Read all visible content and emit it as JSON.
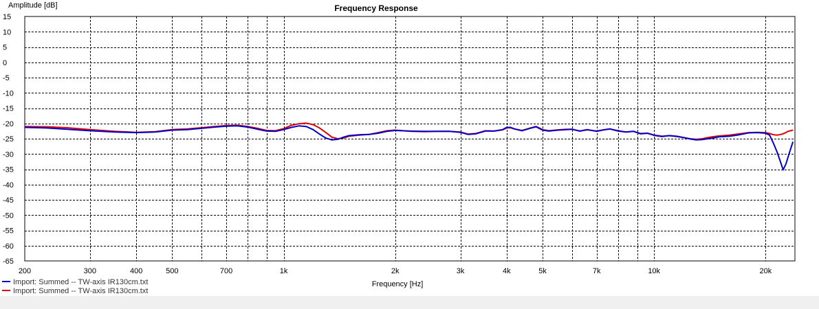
{
  "chart_data": {
    "type": "line",
    "title": "Frequency Response",
    "xlabel": "Frequency [Hz]",
    "ylabel": "Amplitude [dB]",
    "xscale": "log",
    "xlim": [
      200,
      24000
    ],
    "ylim": [
      -65,
      15
    ],
    "xticks": [
      {
        "value": 200,
        "label": "200"
      },
      {
        "value": 300,
        "label": "300"
      },
      {
        "value": 400,
        "label": "400"
      },
      {
        "value": 500,
        "label": "500"
      },
      {
        "value": 700,
        "label": "700"
      },
      {
        "value": 1000,
        "label": "1k"
      },
      {
        "value": 2000,
        "label": "2k"
      },
      {
        "value": 3000,
        "label": "3k"
      },
      {
        "value": 4000,
        "label": "4k"
      },
      {
        "value": 5000,
        "label": "5k"
      },
      {
        "value": 7000,
        "label": "7k"
      },
      {
        "value": 10000,
        "label": "10k"
      },
      {
        "value": 20000,
        "label": "20k"
      }
    ],
    "minor_gridlines": [
      600,
      800,
      900,
      6000,
      8000,
      9000
    ],
    "yticks": [
      15,
      10,
      5,
      0,
      -5,
      -10,
      -15,
      -20,
      -25,
      -30,
      -35,
      -40,
      -45,
      -50,
      -55,
      -60,
      -65
    ],
    "grid": true,
    "legend_position": "bottom-left",
    "series": [
      {
        "name": "Import: Summed -- TW-axis IR130cm.txt",
        "color": "#0000cc",
        "points": [
          [
            200,
            -21.3
          ],
          [
            230,
            -21.5
          ],
          [
            260,
            -21.9
          ],
          [
            300,
            -22.4
          ],
          [
            350,
            -22.8
          ],
          [
            400,
            -23.0
          ],
          [
            450,
            -22.8
          ],
          [
            500,
            -22.2
          ],
          [
            550,
            -22.0
          ],
          [
            600,
            -21.6
          ],
          [
            650,
            -21.2
          ],
          [
            700,
            -20.9
          ],
          [
            750,
            -20.8
          ],
          [
            800,
            -21.2
          ],
          [
            850,
            -21.9
          ],
          [
            900,
            -22.5
          ],
          [
            950,
            -22.6
          ],
          [
            1000,
            -22.0
          ],
          [
            1050,
            -21.3
          ],
          [
            1100,
            -20.8
          ],
          [
            1150,
            -21.0
          ],
          [
            1200,
            -22.0
          ],
          [
            1250,
            -23.5
          ],
          [
            1300,
            -24.8
          ],
          [
            1350,
            -25.4
          ],
          [
            1400,
            -25.2
          ],
          [
            1450,
            -24.5
          ],
          [
            1500,
            -24.0
          ],
          [
            1600,
            -23.7
          ],
          [
            1700,
            -23.6
          ],
          [
            1800,
            -23.2
          ],
          [
            1900,
            -22.6
          ],
          [
            2000,
            -22.3
          ],
          [
            2200,
            -22.5
          ],
          [
            2400,
            -22.6
          ],
          [
            2600,
            -22.6
          ],
          [
            2800,
            -22.6
          ],
          [
            3000,
            -22.9
          ],
          [
            3150,
            -23.6
          ],
          [
            3300,
            -23.4
          ],
          [
            3500,
            -22.5
          ],
          [
            3700,
            -22.5
          ],
          [
            3900,
            -22.0
          ],
          [
            4000,
            -21.3
          ],
          [
            4100,
            -21.3
          ],
          [
            4200,
            -21.8
          ],
          [
            4400,
            -22.4
          ],
          [
            4600,
            -21.7
          ],
          [
            4800,
            -21.1
          ],
          [
            5000,
            -22.2
          ],
          [
            5200,
            -22.5
          ],
          [
            5500,
            -22.2
          ],
          [
            5800,
            -22.0
          ],
          [
            6000,
            -21.9
          ],
          [
            6300,
            -22.5
          ],
          [
            6600,
            -22.0
          ],
          [
            7000,
            -22.6
          ],
          [
            7300,
            -22.1
          ],
          [
            7600,
            -21.8
          ],
          [
            8000,
            -22.5
          ],
          [
            8400,
            -22.8
          ],
          [
            8800,
            -22.6
          ],
          [
            9200,
            -23.4
          ],
          [
            9600,
            -23.2
          ],
          [
            10000,
            -23.9
          ],
          [
            10500,
            -24.3
          ],
          [
            11000,
            -24.0
          ],
          [
            11500,
            -24.2
          ],
          [
            12000,
            -24.6
          ],
          [
            12500,
            -25.1
          ],
          [
            13000,
            -25.4
          ],
          [
            13500,
            -25.3
          ],
          [
            14000,
            -25.0
          ],
          [
            14500,
            -24.7
          ],
          [
            15000,
            -24.4
          ],
          [
            16000,
            -24.2
          ],
          [
            17000,
            -23.7
          ],
          [
            18000,
            -23.1
          ],
          [
            19000,
            -23.0
          ],
          [
            20000,
            -23.2
          ],
          [
            20500,
            -23.8
          ],
          [
            21000,
            -26.5
          ],
          [
            21500,
            -29.5
          ],
          [
            22000,
            -33.0
          ],
          [
            22300,
            -35.2
          ],
          [
            22700,
            -33.2
          ],
          [
            23200,
            -29.5
          ],
          [
            23700,
            -26.0
          ]
        ]
      },
      {
        "name": "Import: Summed -- TW-axis IR130cm.txt",
        "color": "#dd0000",
        "points": [
          [
            200,
            -21.0
          ],
          [
            230,
            -21.1
          ],
          [
            260,
            -21.4
          ],
          [
            300,
            -22.0
          ],
          [
            350,
            -22.6
          ],
          [
            400,
            -22.9
          ],
          [
            450,
            -22.7
          ],
          [
            500,
            -22.0
          ],
          [
            550,
            -21.8
          ],
          [
            600,
            -21.4
          ],
          [
            650,
            -21.0
          ],
          [
            700,
            -20.7
          ],
          [
            750,
            -20.6
          ],
          [
            800,
            -21.0
          ],
          [
            850,
            -21.6
          ],
          [
            900,
            -22.3
          ],
          [
            950,
            -22.4
          ],
          [
            1000,
            -21.7
          ],
          [
            1050,
            -20.6
          ],
          [
            1100,
            -20.1
          ],
          [
            1150,
            -19.9
          ],
          [
            1200,
            -20.4
          ],
          [
            1250,
            -21.5
          ],
          [
            1300,
            -23.0
          ],
          [
            1350,
            -24.5
          ],
          [
            1400,
            -25.0
          ],
          [
            1450,
            -24.8
          ],
          [
            1500,
            -24.2
          ],
          [
            1600,
            -23.8
          ],
          [
            1700,
            -23.6
          ],
          [
            1800,
            -23.0
          ],
          [
            1900,
            -22.4
          ],
          [
            2000,
            -22.2
          ],
          [
            2200,
            -22.6
          ],
          [
            2400,
            -22.7
          ],
          [
            2600,
            -22.6
          ],
          [
            2800,
            -22.6
          ],
          [
            3000,
            -22.8
          ],
          [
            3150,
            -23.5
          ],
          [
            3300,
            -23.3
          ],
          [
            3500,
            -22.4
          ],
          [
            3700,
            -22.5
          ],
          [
            3900,
            -22.1
          ],
          [
            4000,
            -21.5
          ],
          [
            4100,
            -21.4
          ],
          [
            4200,
            -21.8
          ],
          [
            4400,
            -22.3
          ],
          [
            4600,
            -21.6
          ],
          [
            4800,
            -21.0
          ],
          [
            5000,
            -22.0
          ],
          [
            5200,
            -22.4
          ],
          [
            5500,
            -22.1
          ],
          [
            5800,
            -21.9
          ],
          [
            6000,
            -21.9
          ],
          [
            6300,
            -22.5
          ],
          [
            6600,
            -22.1
          ],
          [
            7000,
            -22.5
          ],
          [
            7300,
            -22.1
          ],
          [
            7600,
            -21.8
          ],
          [
            8000,
            -22.4
          ],
          [
            8400,
            -22.8
          ],
          [
            8800,
            -22.6
          ],
          [
            9200,
            -23.3
          ],
          [
            9600,
            -23.2
          ],
          [
            10000,
            -23.8
          ],
          [
            10500,
            -24.2
          ],
          [
            11000,
            -24.0
          ],
          [
            11500,
            -24.3
          ],
          [
            12000,
            -24.6
          ],
          [
            12500,
            -25.0
          ],
          [
            13000,
            -25.2
          ],
          [
            13500,
            -25.0
          ],
          [
            14000,
            -24.6
          ],
          [
            14500,
            -24.3
          ],
          [
            15000,
            -24.1
          ],
          [
            16000,
            -23.8
          ],
          [
            17000,
            -23.4
          ],
          [
            18000,
            -23.0
          ],
          [
            19000,
            -22.9
          ],
          [
            20000,
            -23.0
          ],
          [
            20500,
            -23.3
          ],
          [
            21000,
            -23.7
          ],
          [
            21500,
            -23.8
          ],
          [
            22000,
            -23.6
          ],
          [
            22500,
            -23.2
          ],
          [
            23000,
            -22.6
          ],
          [
            23700,
            -22.2
          ]
        ]
      }
    ]
  }
}
